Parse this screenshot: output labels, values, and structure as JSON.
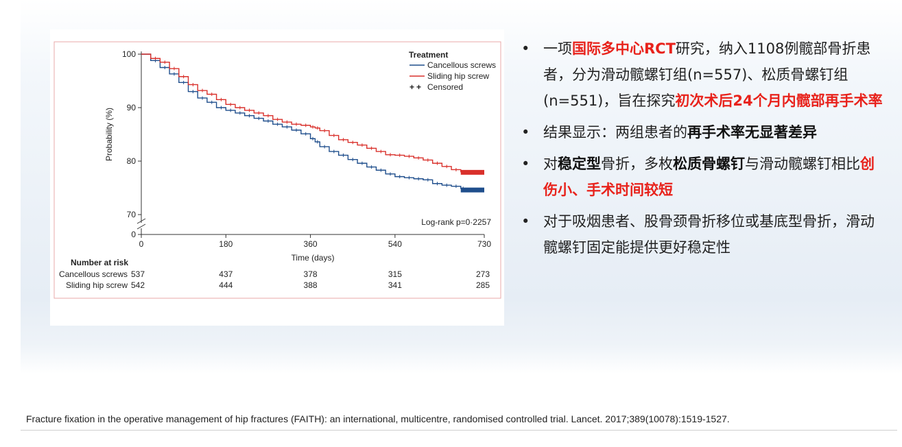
{
  "chart_data": {
    "type": "line",
    "title": "",
    "legend_title": "Treatment",
    "legend_placement": "top-right",
    "xlabel": "Time (days)",
    "ylabel": "Probability (%)",
    "xlim": [
      0,
      730
    ],
    "ylim": [
      70,
      100
    ],
    "x_ticks": [
      0,
      180,
      360,
      540,
      730
    ],
    "x_tick_labels": [
      "0",
      "180",
      "360",
      "540",
      "730"
    ],
    "y_ticks": [
      100,
      90,
      80,
      70,
      0
    ],
    "y_tick_labels": [
      "100",
      "90",
      "80",
      "70",
      "0"
    ],
    "y_axis_break": true,
    "annotation": "Log-rank p=0·2257",
    "series": [
      {
        "name": "Cancellous screws",
        "color": "#1f4e8c",
        "x": [
          0,
          20,
          40,
          60,
          80,
          100,
          120,
          140,
          160,
          180,
          200,
          220,
          240,
          260,
          280,
          300,
          320,
          340,
          360,
          370,
          380,
          400,
          420,
          440,
          460,
          480,
          500,
          520,
          540,
          560,
          580,
          600,
          620,
          640,
          660,
          680,
          690,
          700,
          730
        ],
        "values": [
          100,
          98.8,
          97.5,
          96.3,
          94.7,
          93.0,
          91.8,
          91.0,
          90.0,
          89.5,
          89.0,
          88.5,
          88.0,
          87.5,
          86.9,
          86.4,
          85.8,
          85.1,
          84.2,
          83.6,
          82.7,
          81.8,
          81.1,
          80.3,
          79.6,
          78.9,
          78.3,
          77.6,
          77.1,
          76.9,
          76.7,
          76.5,
          75.8,
          75.5,
          75.3,
          74.9,
          74.7,
          74.6,
          74.6
        ]
      },
      {
        "name": "Sliding hip screw",
        "color": "#d9302b",
        "x": [
          0,
          20,
          40,
          60,
          80,
          100,
          120,
          140,
          160,
          180,
          200,
          220,
          240,
          260,
          280,
          300,
          320,
          340,
          360,
          370,
          380,
          400,
          420,
          440,
          460,
          480,
          500,
          520,
          540,
          560,
          580,
          600,
          620,
          640,
          660,
          680,
          690,
          700,
          730
        ],
        "values": [
          100,
          99.2,
          98.5,
          97.3,
          95.8,
          94.3,
          93.2,
          92.5,
          91.5,
          90.6,
          90.0,
          89.5,
          89.0,
          88.5,
          87.8,
          87.3,
          86.9,
          86.7,
          86.4,
          86.2,
          85.7,
          84.8,
          84.0,
          83.5,
          83.0,
          82.4,
          81.8,
          81.2,
          81.1,
          80.9,
          80.6,
          80.2,
          79.6,
          79.0,
          78.4,
          78.0,
          77.9,
          77.9,
          77.9
        ]
      }
    ],
    "censored_label": "Censored",
    "risk_table": {
      "title": "Number at risk",
      "rows": [
        {
          "label": "Cancellous screws",
          "values": [
            "537",
            "437",
            "378",
            "315",
            "273"
          ]
        },
        {
          "label": "Sliding hip screw",
          "values": [
            "542",
            "444",
            "388",
            "341",
            "285"
          ]
        }
      ]
    }
  },
  "bullets": [
    {
      "segments": [
        {
          "text": "一项",
          "style": "normal"
        },
        {
          "text": "国际多中心RCT",
          "style": "red"
        },
        {
          "text": "研究，纳入1108例髋部骨折患者，分为滑动髋螺钉组(n=557)、松质骨螺钉组(n=551)，旨在探究",
          "style": "normal"
        },
        {
          "text": "初次术后24个月内髋部再手术率",
          "style": "red"
        }
      ]
    },
    {
      "segments": [
        {
          "text": "结果显示：两组患者的",
          "style": "normal"
        },
        {
          "text": "再手术率无显著差异",
          "style": "bold"
        }
      ]
    },
    {
      "segments": [
        {
          "text": "对",
          "style": "normal"
        },
        {
          "text": "稳定型",
          "style": "bold"
        },
        {
          "text": "骨折，多枚",
          "style": "normal"
        },
        {
          "text": "松质骨螺钉",
          "style": "bold"
        },
        {
          "text": "与滑动髋螺钉相比",
          "style": "normal"
        },
        {
          "text": "创伤小、手术时间较短",
          "style": "red"
        }
      ]
    },
    {
      "segments": [
        {
          "text": "对于吸烟患者、股骨颈骨折移位或基底型骨折，滑动髋螺钉固定能提供更好稳定性",
          "style": "normal"
        }
      ]
    }
  ],
  "bullet_marker": "•",
  "citation": "Fracture fixation in the operative management of hip fractures (FAITH): an international, multicentre, randomised controlled trial. Lancet. 2017;389(10078):1519-1527."
}
